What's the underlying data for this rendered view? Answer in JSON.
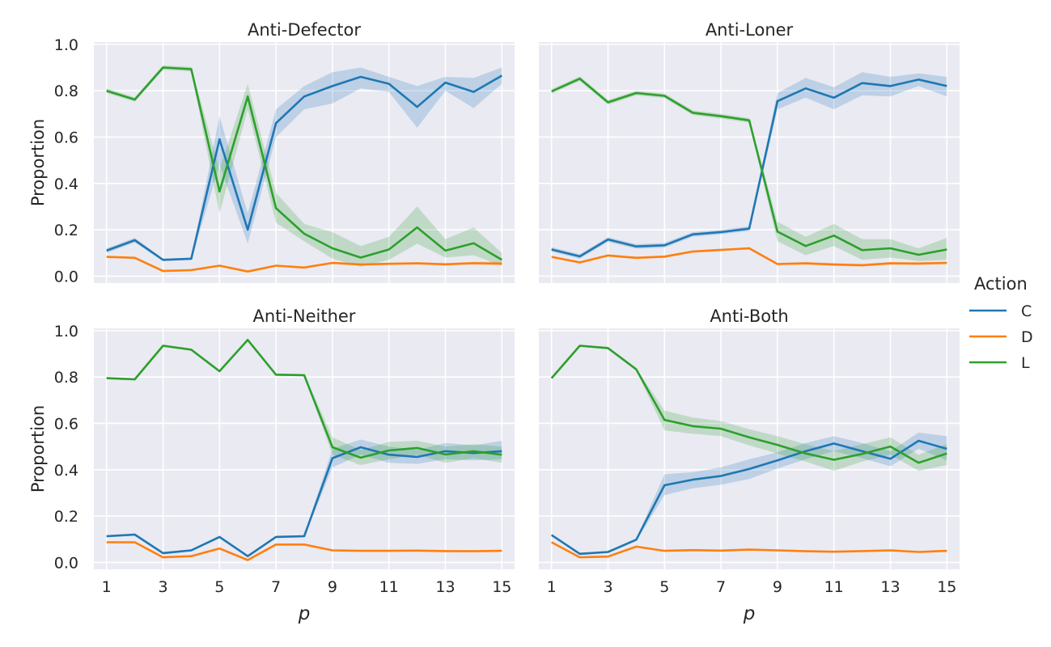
{
  "chart_data": {
    "type": "line",
    "x": [
      1,
      2,
      3,
      4,
      5,
      6,
      7,
      8,
      9,
      10,
      11,
      12,
      13,
      14,
      15
    ],
    "x_ticks": [
      1,
      3,
      5,
      7,
      9,
      11,
      13,
      15
    ],
    "x_tick_labels": [
      "1",
      "3",
      "5",
      "7",
      "9",
      "11",
      "13",
      "15"
    ],
    "xlabel": "p",
    "ylabel": "Proportion",
    "xlim": [
      0.55,
      15.45
    ],
    "ylim": [
      -0.03,
      1.01
    ],
    "y_ticks": [
      0.0,
      0.2,
      0.4,
      0.6,
      0.8,
      1.0
    ],
    "y_tick_labels": [
      "0.0",
      "0.2",
      "0.4",
      "0.6",
      "0.8",
      "1.0"
    ],
    "grid": true,
    "legend": {
      "title": "Action",
      "placement": "right",
      "entries": [
        {
          "label": "C",
          "color": "#1f77b4"
        },
        {
          "label": "D",
          "color": "#ff7f0e"
        },
        {
          "label": "L",
          "color": "#2ca02c"
        }
      ]
    },
    "panels": [
      {
        "title": "Anti-Defector",
        "series": [
          {
            "name": "C",
            "color": "#1f77b4",
            "values": [
              0.11,
              0.155,
              0.07,
              0.075,
              0.59,
              0.2,
              0.66,
              0.775,
              0.82,
              0.86,
              0.83,
              0.73,
              0.835,
              0.795,
              0.865
            ],
            "lower": [
              0.1,
              0.145,
              0.065,
              0.07,
              0.48,
              0.14,
              0.6,
              0.72,
              0.745,
              0.81,
              0.795,
              0.64,
              0.8,
              0.725,
              0.83
            ],
            "upper": [
              0.12,
              0.165,
              0.075,
              0.08,
              0.69,
              0.27,
              0.72,
              0.82,
              0.88,
              0.9,
              0.86,
              0.82,
              0.86,
              0.855,
              0.9
            ]
          },
          {
            "name": "D",
            "color": "#ff7f0e",
            "values": [
              0.083,
              0.079,
              0.022,
              0.026,
              0.045,
              0.02,
              0.045,
              0.037,
              0.057,
              0.05,
              0.053,
              0.055,
              0.051,
              0.056,
              0.054
            ],
            "lower": [
              0.081,
              0.077,
              0.02,
              0.024,
              0.043,
              0.018,
              0.043,
              0.035,
              0.052,
              0.045,
              0.048,
              0.05,
              0.046,
              0.05,
              0.046
            ],
            "upper": [
              0.085,
              0.081,
              0.024,
              0.028,
              0.047,
              0.022,
              0.047,
              0.039,
              0.062,
              0.055,
              0.058,
              0.06,
              0.056,
              0.062,
              0.062
            ]
          },
          {
            "name": "L",
            "color": "#2ca02c",
            "values": [
              0.8,
              0.762,
              0.9,
              0.893,
              0.365,
              0.775,
              0.293,
              0.183,
              0.12,
              0.08,
              0.115,
              0.21,
              0.11,
              0.142,
              0.07
            ],
            "lower": [
              0.79,
              0.752,
              0.89,
              0.883,
              0.27,
              0.72,
              0.23,
              0.15,
              0.075,
              0.04,
              0.07,
              0.14,
              0.08,
              0.09,
              0.045
            ],
            "upper": [
              0.81,
              0.772,
              0.91,
              0.903,
              0.46,
              0.83,
              0.36,
              0.225,
              0.19,
              0.13,
              0.17,
              0.3,
              0.16,
              0.21,
              0.1
            ]
          }
        ]
      },
      {
        "title": "Anti-Loner",
        "series": [
          {
            "name": "C",
            "color": "#1f77b4",
            "values": [
              0.115,
              0.085,
              0.158,
              0.128,
              0.133,
              0.18,
              0.19,
              0.205,
              0.755,
              0.81,
              0.77,
              0.833,
              0.82,
              0.848,
              0.82
            ],
            "lower": [
              0.105,
              0.075,
              0.148,
              0.118,
              0.123,
              0.17,
              0.18,
              0.195,
              0.72,
              0.77,
              0.72,
              0.78,
              0.775,
              0.82,
              0.775
            ],
            "upper": [
              0.125,
              0.095,
              0.168,
              0.138,
              0.143,
              0.19,
              0.2,
              0.215,
              0.79,
              0.855,
              0.815,
              0.88,
              0.86,
              0.875,
              0.86
            ]
          },
          {
            "name": "D",
            "color": "#ff7f0e",
            "values": [
              0.083,
              0.059,
              0.089,
              0.079,
              0.084,
              0.106,
              0.113,
              0.12,
              0.052,
              0.055,
              0.05,
              0.047,
              0.055,
              0.054,
              0.057
            ],
            "lower": [
              0.078,
              0.054,
              0.084,
              0.074,
              0.079,
              0.101,
              0.108,
              0.115,
              0.047,
              0.049,
              0.044,
              0.041,
              0.049,
              0.048,
              0.051
            ],
            "upper": [
              0.088,
              0.064,
              0.094,
              0.084,
              0.089,
              0.111,
              0.118,
              0.125,
              0.057,
              0.061,
              0.056,
              0.053,
              0.061,
              0.06,
              0.063
            ]
          },
          {
            "name": "L",
            "color": "#2ca02c",
            "values": [
              0.797,
              0.852,
              0.75,
              0.79,
              0.778,
              0.705,
              0.69,
              0.672,
              0.192,
              0.13,
              0.175,
              0.112,
              0.12,
              0.092,
              0.115
            ],
            "lower": [
              0.787,
              0.842,
              0.74,
              0.78,
              0.768,
              0.695,
              0.68,
              0.662,
              0.15,
              0.09,
              0.13,
              0.07,
              0.08,
              0.065,
              0.07
            ],
            "upper": [
              0.807,
              0.862,
              0.76,
              0.8,
              0.788,
              0.715,
              0.7,
              0.682,
              0.235,
              0.17,
              0.225,
              0.16,
              0.16,
              0.12,
              0.165
            ]
          }
        ]
      },
      {
        "title": "Anti-Neither",
        "series": [
          {
            "name": "C",
            "color": "#1f77b4",
            "values": [
              0.113,
              0.12,
              0.04,
              0.052,
              0.11,
              0.027,
              0.11,
              0.113,
              0.45,
              0.497,
              0.465,
              0.455,
              0.48,
              0.472,
              0.48
            ],
            "lower": [
              0.108,
              0.115,
              0.035,
              0.047,
              0.105,
              0.022,
              0.105,
              0.108,
              0.41,
              0.465,
              0.43,
              0.425,
              0.445,
              0.44,
              0.445
            ],
            "upper": [
              0.118,
              0.125,
              0.045,
              0.057,
              0.115,
              0.032,
              0.115,
              0.118,
              0.49,
              0.53,
              0.5,
              0.485,
              0.515,
              0.505,
              0.525
            ]
          },
          {
            "name": "D",
            "color": "#ff7f0e",
            "values": [
              0.087,
              0.087,
              0.022,
              0.027,
              0.06,
              0.01,
              0.077,
              0.077,
              0.052,
              0.05,
              0.05,
              0.051,
              0.049,
              0.048,
              0.05
            ],
            "lower": [
              0.084,
              0.084,
              0.019,
              0.024,
              0.057,
              0.007,
              0.074,
              0.074,
              0.049,
              0.047,
              0.047,
              0.048,
              0.046,
              0.045,
              0.047
            ],
            "upper": [
              0.09,
              0.09,
              0.025,
              0.03,
              0.063,
              0.013,
              0.08,
              0.08,
              0.055,
              0.053,
              0.053,
              0.054,
              0.052,
              0.051,
              0.053
            ]
          },
          {
            "name": "L",
            "color": "#2ca02c",
            "values": [
              0.795,
              0.79,
              0.935,
              0.918,
              0.825,
              0.96,
              0.81,
              0.808,
              0.497,
              0.452,
              0.483,
              0.494,
              0.466,
              0.48,
              0.465
            ],
            "lower": [
              0.79,
              0.785,
              0.93,
              0.913,
              0.82,
              0.955,
              0.805,
              0.803,
              0.465,
              0.42,
              0.445,
              0.465,
              0.43,
              0.45,
              0.43
            ],
            "upper": [
              0.8,
              0.795,
              0.94,
              0.923,
              0.83,
              0.965,
              0.815,
              0.813,
              0.54,
              0.485,
              0.52,
              0.525,
              0.5,
              0.51,
              0.5
            ]
          }
        ]
      },
      {
        "title": "Anti-Both",
        "series": [
          {
            "name": "C",
            "color": "#1f77b4",
            "values": [
              0.118,
              0.037,
              0.045,
              0.098,
              0.333,
              0.357,
              0.373,
              0.403,
              0.44,
              0.48,
              0.513,
              0.48,
              0.447,
              0.525,
              0.49
            ],
            "lower": [
              0.113,
              0.032,
              0.04,
              0.093,
              0.29,
              0.32,
              0.335,
              0.36,
              0.405,
              0.445,
              0.48,
              0.45,
              0.415,
              0.49,
              0.44
            ],
            "upper": [
              0.123,
              0.042,
              0.05,
              0.103,
              0.38,
              0.39,
              0.41,
              0.445,
              0.475,
              0.515,
              0.545,
              0.515,
              0.48,
              0.56,
              0.545
            ]
          },
          {
            "name": "D",
            "color": "#ff7f0e",
            "values": [
              0.087,
              0.022,
              0.025,
              0.068,
              0.05,
              0.053,
              0.051,
              0.055,
              0.052,
              0.048,
              0.046,
              0.049,
              0.052,
              0.045,
              0.05
            ],
            "lower": [
              0.084,
              0.019,
              0.022,
              0.065,
              0.047,
              0.05,
              0.048,
              0.052,
              0.049,
              0.045,
              0.043,
              0.046,
              0.049,
              0.042,
              0.047
            ],
            "upper": [
              0.09,
              0.025,
              0.028,
              0.071,
              0.053,
              0.056,
              0.054,
              0.058,
              0.055,
              0.051,
              0.049,
              0.052,
              0.055,
              0.048,
              0.053
            ]
          },
          {
            "name": "L",
            "color": "#2ca02c",
            "values": [
              0.795,
              0.935,
              0.925,
              0.833,
              0.615,
              0.588,
              0.577,
              0.54,
              0.507,
              0.47,
              0.443,
              0.468,
              0.5,
              0.43,
              0.47
            ],
            "lower": [
              0.79,
              0.93,
              0.92,
              0.828,
              0.57,
              0.555,
              0.545,
              0.505,
              0.47,
              0.435,
              0.395,
              0.435,
              0.465,
              0.395,
              0.42
            ],
            "upper": [
              0.8,
              0.94,
              0.93,
              0.838,
              0.655,
              0.625,
              0.61,
              0.575,
              0.545,
              0.51,
              0.48,
              0.51,
              0.54,
              0.465,
              0.51
            ]
          }
        ]
      }
    ]
  }
}
